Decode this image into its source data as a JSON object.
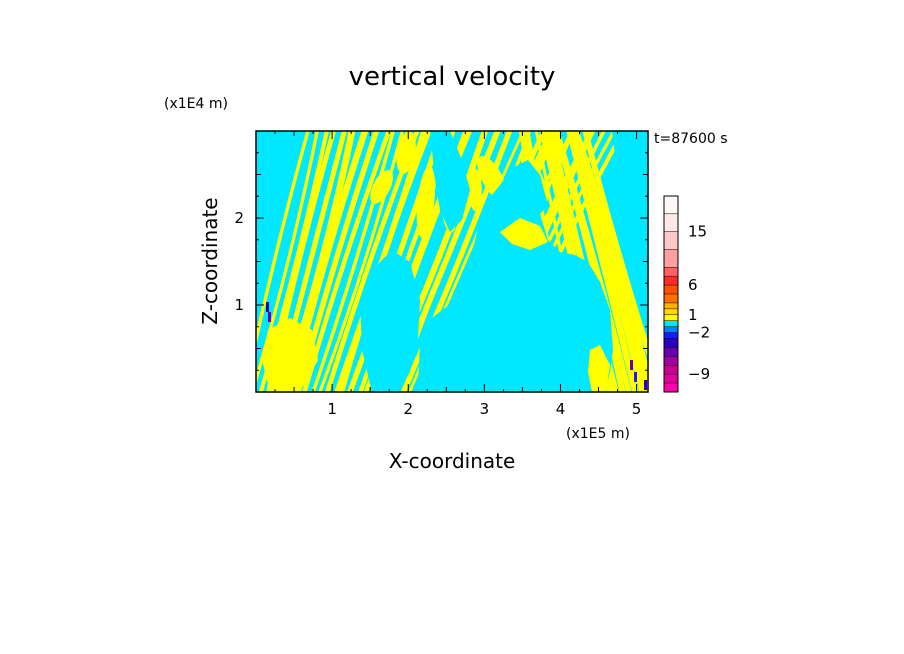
{
  "chart_data": {
    "type": "heatmap",
    "title": "vertical velocity",
    "xlabel": "X-coordinate",
    "ylabel": "Z-coordinate",
    "x_scale_label": "(x1E5 m)",
    "y_scale_label": "(x1E4 m)",
    "time_label": "t=87600 s",
    "xlim": [
      0,
      5.15
    ],
    "ylim": [
      0,
      3.0
    ],
    "x_ticks": [
      1,
      2,
      3,
      4,
      5
    ],
    "y_ticks": [
      1,
      2
    ],
    "colorbar": {
      "levels": [
        -12,
        -10.5,
        -9,
        -7.5,
        -6,
        -4.5,
        -3,
        -2,
        -1,
        0,
        1,
        2,
        3,
        4.5,
        6,
        7.5,
        9,
        12,
        15,
        18,
        21
      ],
      "colors": [
        "#ff00aa",
        "#e0009c",
        "#c80090",
        "#a000a0",
        "#6a00b0",
        "#2a00c0",
        "#1a1aff",
        "#0080ff",
        "#00e8ff",
        "#ffff00",
        "#ffd800",
        "#ffb000",
        "#ff7000",
        "#ff5000",
        "#ff2a2a",
        "#ff6060",
        "#ffa0a0",
        "#ffc8c8",
        "#ffe8e8",
        "#fff6f6"
      ],
      "tick_labels": [
        {
          "value": 15,
          "label": "15"
        },
        {
          "value": 6,
          "label": "6"
        },
        {
          "value": 1,
          "label": "1"
        },
        {
          "value": -2,
          "label": "−2"
        },
        {
          "value": -9,
          "label": "−9"
        }
      ]
    },
    "field_colors": {
      "positive": "#ffff00",
      "negative": "#00e8ff"
    }
  }
}
